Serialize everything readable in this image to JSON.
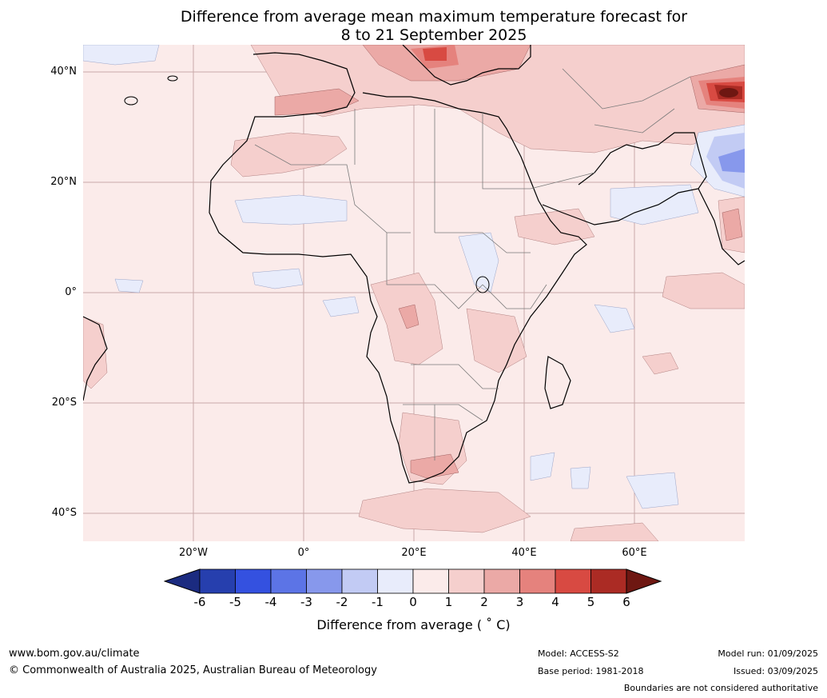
{
  "title": {
    "line1": "Difference from average mean maximum temperature forecast for",
    "line2": "8 to 21 September 2025"
  },
  "axes": {
    "lat_labels": [
      "40°N",
      "20°N",
      "0°",
      "20°S",
      "40°S"
    ],
    "lon_labels": [
      "20°W",
      "0°",
      "20°E",
      "40°E",
      "60°E"
    ]
  },
  "colorbar": {
    "title": "Difference from average ( ˚ C)",
    "ticks": [
      "-6",
      "-5",
      "-4",
      "-3",
      "-2",
      "-1",
      "0",
      "1",
      "2",
      "3",
      "4",
      "5",
      "6"
    ],
    "colors": [
      "#1b2b80",
      "#263fae",
      "#3451e0",
      "#5c74e6",
      "#8798ec",
      "#c2cbf4",
      "#e8ecfb",
      "#fbebea",
      "#f5cfcd",
      "#eba9a6",
      "#e5827d",
      "#d84a42",
      "#ab2b24",
      "#6e1712"
    ]
  },
  "footer": {
    "website": "www.bom.gov.au/climate",
    "copyright": "© Commonwealth of Australia 2025, Australian Bureau of Meteorology",
    "model": "Model: ACCESS-S2",
    "base_period": "Base period: 1981-2018",
    "model_run": "Model run: 01/09/2025",
    "issued": "Issued: 03/09/2025",
    "disclaimer": "Boundaries are not considered authoritative"
  }
}
